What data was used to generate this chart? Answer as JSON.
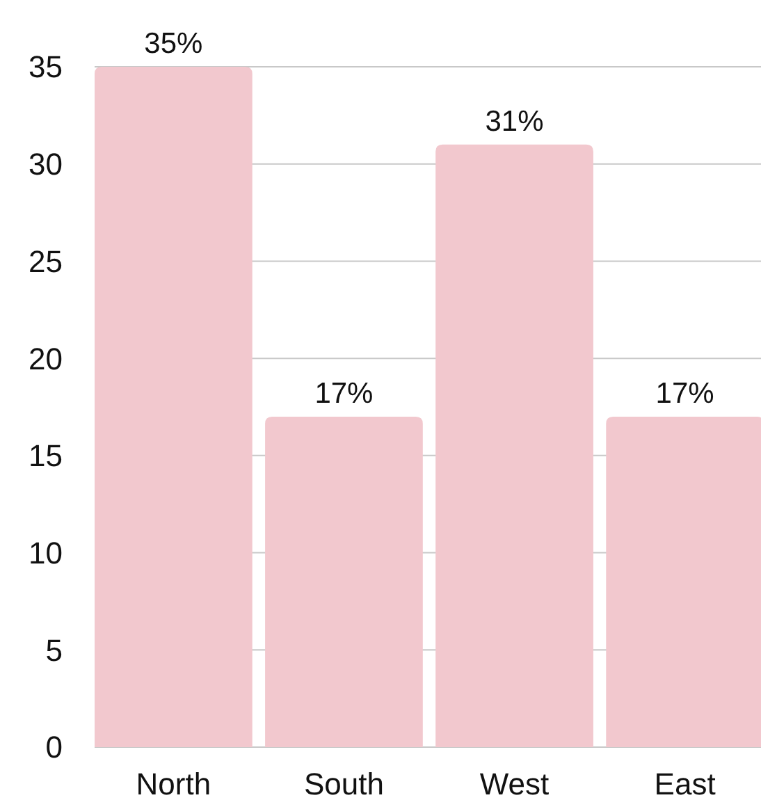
{
  "chart_data": {
    "type": "bar",
    "categories": [
      "North",
      "South",
      "West",
      "East"
    ],
    "values": [
      35,
      17,
      31,
      17
    ],
    "value_labels": [
      "35%",
      "17%",
      "31%",
      "17%"
    ],
    "color": "#f2c8ce",
    "ylim": [
      0,
      35
    ],
    "yticks": [
      0,
      5,
      10,
      15,
      20,
      25,
      30,
      35
    ],
    "grid": "y"
  }
}
